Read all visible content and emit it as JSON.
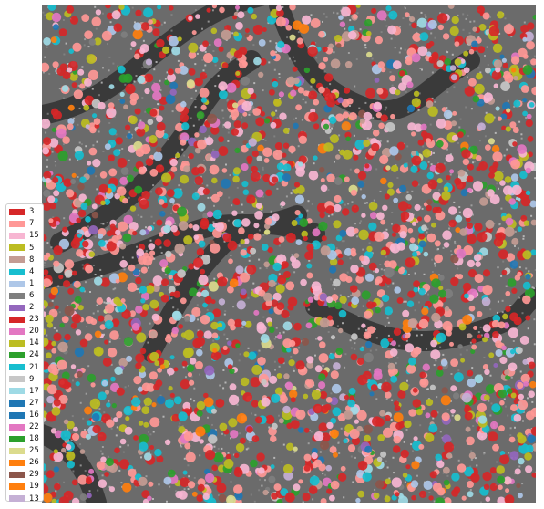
{
  "figure": {
    "background_color": "#ffffff",
    "image_base_color": "#6b6b6b",
    "texture_colors": [
      "#3a3a3a",
      "#8a8a8a",
      "#b4b4b4",
      "#d6d6d6"
    ]
  },
  "legend": {
    "placement": "lower-left",
    "entries": [
      {
        "label": "3",
        "color": "#d62728"
      },
      {
        "label": "7",
        "color": "#ff9896"
      },
      {
        "label": "15",
        "color": "#f7b6d2"
      },
      {
        "label": "5",
        "color": "#bcbd22"
      },
      {
        "label": "8",
        "color": "#c49c94"
      },
      {
        "label": "4",
        "color": "#17becf"
      },
      {
        "label": "1",
        "color": "#aec7e8"
      },
      {
        "label": "6",
        "color": "#7f7f7f"
      },
      {
        "label": "2",
        "color": "#9467bd"
      },
      {
        "label": "23",
        "color": "#d62728"
      },
      {
        "label": "20",
        "color": "#e377c2"
      },
      {
        "label": "14",
        "color": "#bcbd22"
      },
      {
        "label": "24",
        "color": "#2ca02c"
      },
      {
        "label": "21",
        "color": "#17becf"
      },
      {
        "label": "9",
        "color": "#c7c7c7"
      },
      {
        "label": "17",
        "color": "#9edae5"
      },
      {
        "label": "27",
        "color": "#1f77b4"
      },
      {
        "label": "16",
        "color": "#1f77b4"
      },
      {
        "label": "22",
        "color": "#e377c2"
      },
      {
        "label": "18",
        "color": "#2ca02c"
      },
      {
        "label": "25",
        "color": "#dbdb8d"
      },
      {
        "label": "26",
        "color": "#ff7f0e"
      },
      {
        "label": "29",
        "color": "#8c564b"
      },
      {
        "label": "19",
        "color": "#ff7f0e"
      },
      {
        "label": "13",
        "color": "#c5b0d5"
      }
    ]
  }
}
